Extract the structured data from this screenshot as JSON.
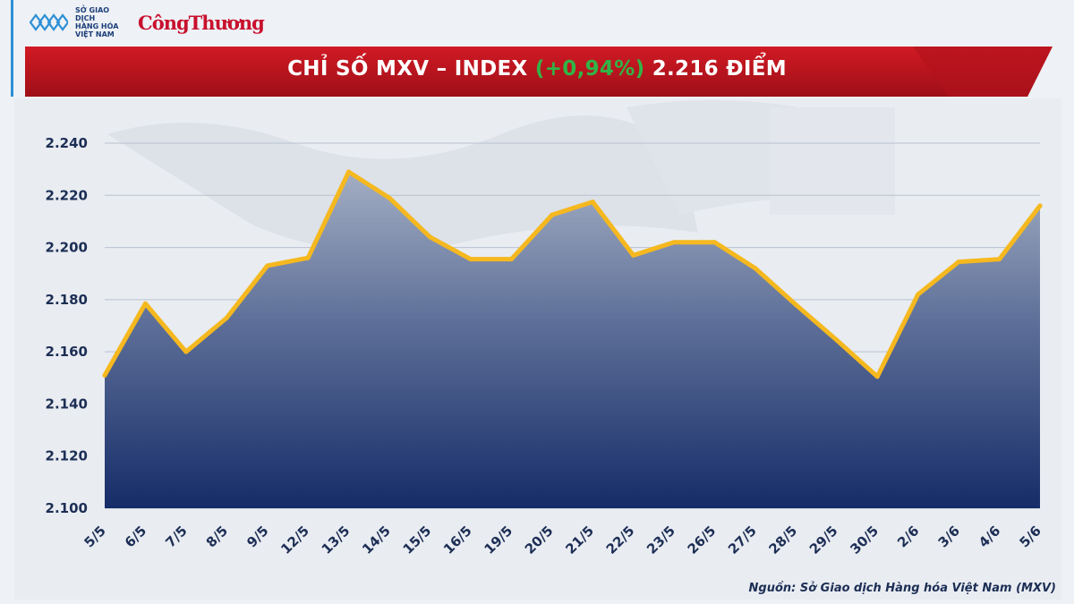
{
  "header": {
    "logo_text_lines": [
      "SỞ GIAO DỊCH",
      "HÀNG HÓA",
      "VIỆT NAM"
    ],
    "brand_name": "CôngThương",
    "logo_icon": "mxv-logo-icon"
  },
  "colors": {
    "banner_red": "#c8102e",
    "banner_dark": "#7a0a0a",
    "accent_green": "#31b447",
    "line_yellow": "#f5b81e",
    "area_top": "#9aa6bd",
    "area_bottom": "#1a2f6b",
    "text_navy": "#1c2e55"
  },
  "title": {
    "prefix": "CHỈ SỐ MXV – INDEX ",
    "change": "(+0,94%)",
    "suffix": " 2.216 ĐIỂM"
  },
  "source_note": "Nguồn: Sở Giao dịch Hàng hóa Việt Nam (MXV)",
  "chart_data": {
    "type": "area",
    "title": "CHỈ SỐ MXV – INDEX (+0,94%) 2.216 ĐIỂM",
    "xlabel": "",
    "ylabel": "",
    "ylim": [
      2100,
      2240
    ],
    "yticks": [
      2100,
      2120,
      2140,
      2160,
      2180,
      2200,
      2220,
      2240
    ],
    "ytick_labels": [
      "2.100",
      "2.120",
      "2.140",
      "2.160",
      "2.180",
      "2.200",
      "2.220",
      "2.240"
    ],
    "grid": true,
    "categories": [
      "5/5",
      "6/5",
      "7/5",
      "8/5",
      "9/5",
      "12/5",
      "13/5",
      "14/5",
      "15/5",
      "16/5",
      "19/5",
      "20/5",
      "21/5",
      "22/5",
      "23/5",
      "26/5",
      "27/5",
      "28/5",
      "29/5",
      "30/5",
      "2/6",
      "3/6",
      "4/6",
      "5/6"
    ],
    "series": [
      {
        "name": "MXV-Index",
        "values": [
          2151,
          2178.5,
          2160,
          2173,
          2193,
          2196,
          2229,
          2219,
          2204,
          2195.5,
          2195.5,
          2212.5,
          2217.5,
          2197,
          2202,
          2202,
          2192,
          2178,
          2164.5,
          2150.5,
          2182,
          2194.5,
          2195.5,
          2216
        ]
      }
    ]
  }
}
